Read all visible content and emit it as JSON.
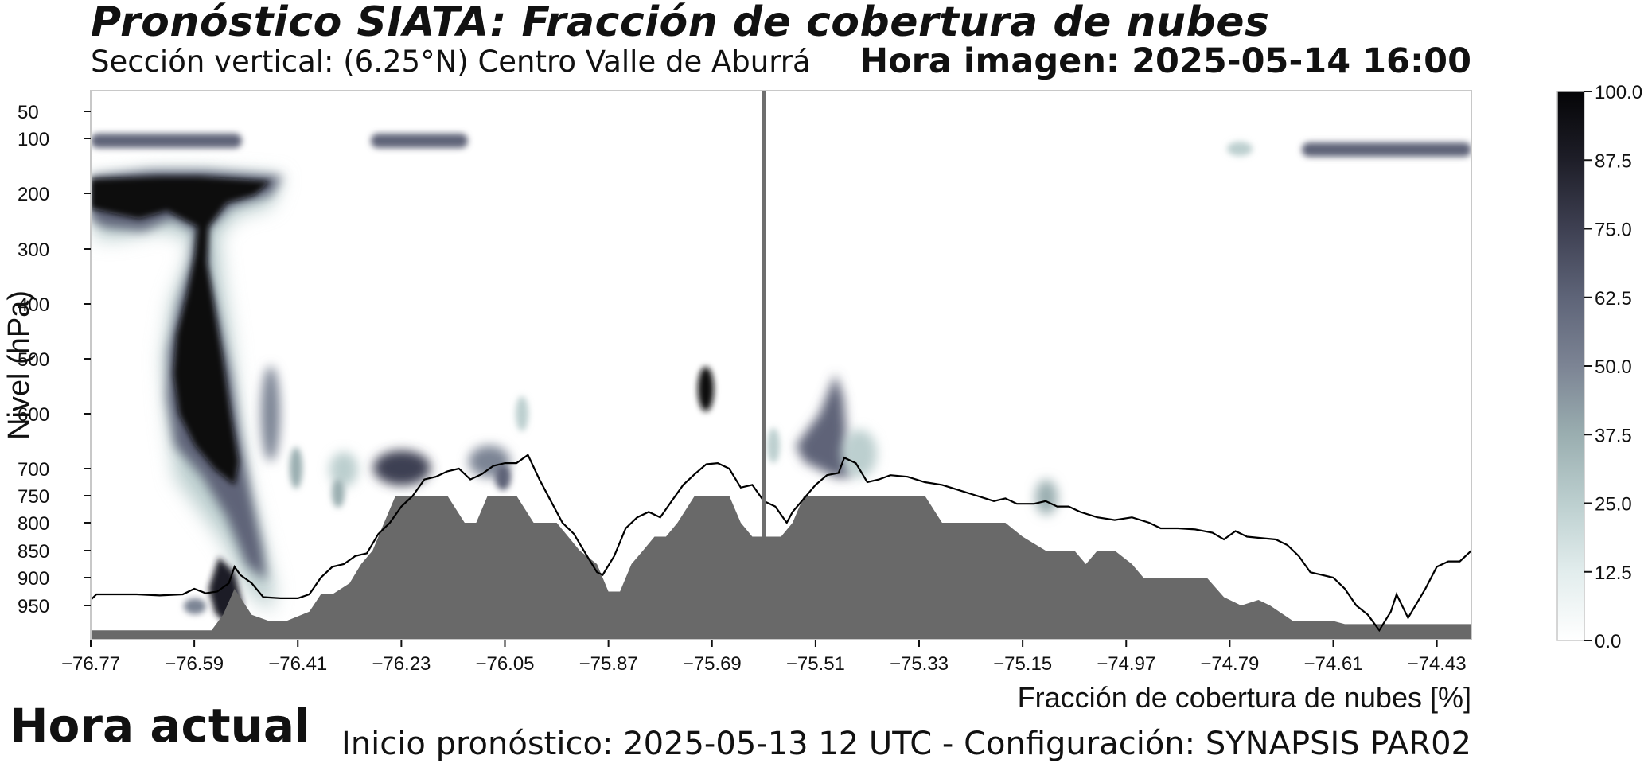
{
  "header": {
    "title": "Pronóstico SIATA: Fracción de cobertura de nubes",
    "subtitle": "Sección vertical: (6.25°N) Centro Valle de Aburrá",
    "hora_imagen": "Hora imagen: 2025-05-14 16:00"
  },
  "footer": {
    "hora_actual": "Hora actual",
    "inicio": "Inicio pronóstico: 2025-05-13 12 UTC - Configuración: SYNAPSIS PAR02"
  },
  "colors": {
    "terrain": "#696969",
    "cloud_dark": "#0b0b10",
    "cloud_mid": "#5e6478",
    "cloud_light": "#bccfcf",
    "current_line": "#6e6e6e"
  },
  "chart_data": {
    "type": "heatmap",
    "xlabel": "Fracción de cobertura de nubes [%]",
    "ylabel": "Nivel (hPa)",
    "x_ticks": [
      "−76.77",
      "−76.59",
      "−76.41",
      "−76.23",
      "−76.05",
      "−75.87",
      "−75.69",
      "−75.51",
      "−75.33",
      "−75.15",
      "−74.97",
      "−74.79",
      "−74.61",
      "−74.43"
    ],
    "x_tick_values": [
      -76.77,
      -76.59,
      -76.41,
      -76.23,
      -76.05,
      -75.87,
      -75.69,
      -75.51,
      -75.33,
      -75.15,
      -74.97,
      -74.79,
      -74.61,
      -74.43
    ],
    "y_ticks": [
      "50",
      "100",
      "200",
      "300",
      "400",
      "500",
      "600",
      "700",
      "750",
      "800",
      "850",
      "900",
      "950"
    ],
    "y_tick_values": [
      50,
      100,
      200,
      300,
      400,
      500,
      600,
      700,
      750,
      800,
      850,
      900,
      950
    ],
    "xlim": [
      -76.77,
      -74.37
    ],
    "current_longitude": -75.6,
    "colorbar": {
      "min": 0,
      "max": 100,
      "ticks": [
        "0.0",
        "12.5",
        "25.0",
        "37.5",
        "50.0",
        "62.5",
        "75.0",
        "87.5",
        "100.0"
      ],
      "tick_values": [
        0,
        12.5,
        25,
        37.5,
        50,
        62.5,
        75,
        87.5,
        100
      ]
    },
    "terrain_profile": [
      [
        -76.77,
        990
      ],
      [
        -76.56,
        990
      ],
      [
        -76.54,
        965
      ],
      [
        -76.52,
        920
      ],
      [
        -76.49,
        965
      ],
      [
        -76.46,
        975
      ],
      [
        -76.43,
        975
      ],
      [
        -76.39,
        960
      ],
      [
        -76.37,
        930
      ],
      [
        -76.35,
        930
      ],
      [
        -76.32,
        910
      ],
      [
        -76.3,
        875
      ],
      [
        -76.28,
        850
      ],
      [
        -76.26,
        800
      ],
      [
        -76.24,
        750
      ],
      [
        -76.15,
        750
      ],
      [
        -76.12,
        800
      ],
      [
        -76.1,
        800
      ],
      [
        -76.08,
        750
      ],
      [
        -76.03,
        750
      ],
      [
        -76.0,
        800
      ],
      [
        -75.96,
        800
      ],
      [
        -75.92,
        850
      ],
      [
        -75.89,
        875
      ],
      [
        -75.87,
        925
      ],
      [
        -75.85,
        925
      ],
      [
        -75.83,
        875
      ],
      [
        -75.81,
        850
      ],
      [
        -75.79,
        825
      ],
      [
        -75.77,
        825
      ],
      [
        -75.75,
        800
      ],
      [
        -75.72,
        750
      ],
      [
        -75.66,
        750
      ],
      [
        -75.64,
        800
      ],
      [
        -75.62,
        825
      ],
      [
        -75.57,
        825
      ],
      [
        -75.55,
        800
      ],
      [
        -75.53,
        750
      ],
      [
        -75.32,
        750
      ],
      [
        -75.29,
        800
      ],
      [
        -75.18,
        800
      ],
      [
        -75.15,
        825
      ],
      [
        -75.11,
        850
      ],
      [
        -75.06,
        850
      ],
      [
        -75.04,
        875
      ],
      [
        -75.02,
        850
      ],
      [
        -74.99,
        850
      ],
      [
        -74.96,
        875
      ],
      [
        -74.94,
        900
      ],
      [
        -74.83,
        900
      ],
      [
        -74.8,
        935
      ],
      [
        -74.77,
        950
      ],
      [
        -74.74,
        940
      ],
      [
        -74.72,
        950
      ],
      [
        -74.68,
        975
      ],
      [
        -74.61,
        975
      ],
      [
        -74.59,
        980
      ],
      [
        -74.37,
        980
      ]
    ],
    "pbl_line": [
      [
        -76.77,
        940
      ],
      [
        -76.76,
        930
      ],
      [
        -76.73,
        930
      ],
      [
        -76.69,
        930
      ],
      [
        -76.65,
        932
      ],
      [
        -76.61,
        930
      ],
      [
        -76.59,
        920
      ],
      [
        -76.57,
        928
      ],
      [
        -76.55,
        925
      ],
      [
        -76.53,
        910
      ],
      [
        -76.52,
        880
      ],
      [
        -76.51,
        895
      ],
      [
        -76.49,
        910
      ],
      [
        -76.47,
        935
      ],
      [
        -76.44,
        937
      ],
      [
        -76.41,
        937
      ],
      [
        -76.39,
        930
      ],
      [
        -76.37,
        900
      ],
      [
        -76.35,
        880
      ],
      [
        -76.33,
        875
      ],
      [
        -76.31,
        860
      ],
      [
        -76.29,
        855
      ],
      [
        -76.27,
        820
      ],
      [
        -76.25,
        800
      ],
      [
        -76.23,
        770
      ],
      [
        -76.21,
        750
      ],
      [
        -76.19,
        720
      ],
      [
        -76.17,
        715
      ],
      [
        -76.15,
        705
      ],
      [
        -76.13,
        700
      ],
      [
        -76.11,
        720
      ],
      [
        -76.09,
        710
      ],
      [
        -76.07,
        695
      ],
      [
        -76.05,
        690
      ],
      [
        -76.03,
        690
      ],
      [
        -76.01,
        675
      ],
      [
        -75.99,
        720
      ],
      [
        -75.97,
        760
      ],
      [
        -75.95,
        800
      ],
      [
        -75.93,
        820
      ],
      [
        -75.91,
        855
      ],
      [
        -75.89,
        890
      ],
      [
        -75.88,
        895
      ],
      [
        -75.86,
        860
      ],
      [
        -75.84,
        810
      ],
      [
        -75.82,
        790
      ],
      [
        -75.8,
        780
      ],
      [
        -75.78,
        790
      ],
      [
        -75.76,
        760
      ],
      [
        -75.74,
        730
      ],
      [
        -75.72,
        710
      ],
      [
        -75.7,
        692
      ],
      [
        -75.68,
        690
      ],
      [
        -75.66,
        700
      ],
      [
        -75.64,
        735
      ],
      [
        -75.62,
        730
      ],
      [
        -75.6,
        760
      ],
      [
        -75.58,
        770
      ],
      [
        -75.56,
        800
      ],
      [
        -75.55,
        780
      ],
      [
        -75.53,
        755
      ],
      [
        -75.51,
        730
      ],
      [
        -75.49,
        712
      ],
      [
        -75.47,
        708
      ],
      [
        -75.46,
        680
      ],
      [
        -75.44,
        690
      ],
      [
        -75.42,
        725
      ],
      [
        -75.4,
        720
      ],
      [
        -75.38,
        712
      ],
      [
        -75.35,
        715
      ],
      [
        -75.32,
        725
      ],
      [
        -75.29,
        730
      ],
      [
        -75.26,
        740
      ],
      [
        -75.23,
        750
      ],
      [
        -75.2,
        760
      ],
      [
        -75.18,
        755
      ],
      [
        -75.16,
        765
      ],
      [
        -75.13,
        765
      ],
      [
        -75.11,
        760
      ],
      [
        -75.09,
        770
      ],
      [
        -75.07,
        770
      ],
      [
        -75.05,
        780
      ],
      [
        -75.02,
        790
      ],
      [
        -74.99,
        795
      ],
      [
        -74.96,
        790
      ],
      [
        -74.93,
        800
      ],
      [
        -74.91,
        810
      ],
      [
        -74.88,
        810
      ],
      [
        -74.85,
        812
      ],
      [
        -74.82,
        818
      ],
      [
        -74.8,
        830
      ],
      [
        -74.78,
        815
      ],
      [
        -74.76,
        825
      ],
      [
        -74.73,
        828
      ],
      [
        -74.71,
        830
      ],
      [
        -74.69,
        840
      ],
      [
        -74.67,
        860
      ],
      [
        -74.65,
        890
      ],
      [
        -74.63,
        895
      ],
      [
        -74.61,
        900
      ],
      [
        -74.59,
        920
      ],
      [
        -74.57,
        950
      ],
      [
        -74.55,
        965
      ],
      [
        -74.53,
        990
      ],
      [
        -74.51,
        960
      ],
      [
        -74.5,
        930
      ],
      [
        -74.48,
        970
      ],
      [
        -74.45,
        920
      ],
      [
        -74.43,
        880
      ],
      [
        -74.41,
        870
      ],
      [
        -74.39,
        870
      ],
      [
        -74.37,
        850
      ]
    ]
  }
}
